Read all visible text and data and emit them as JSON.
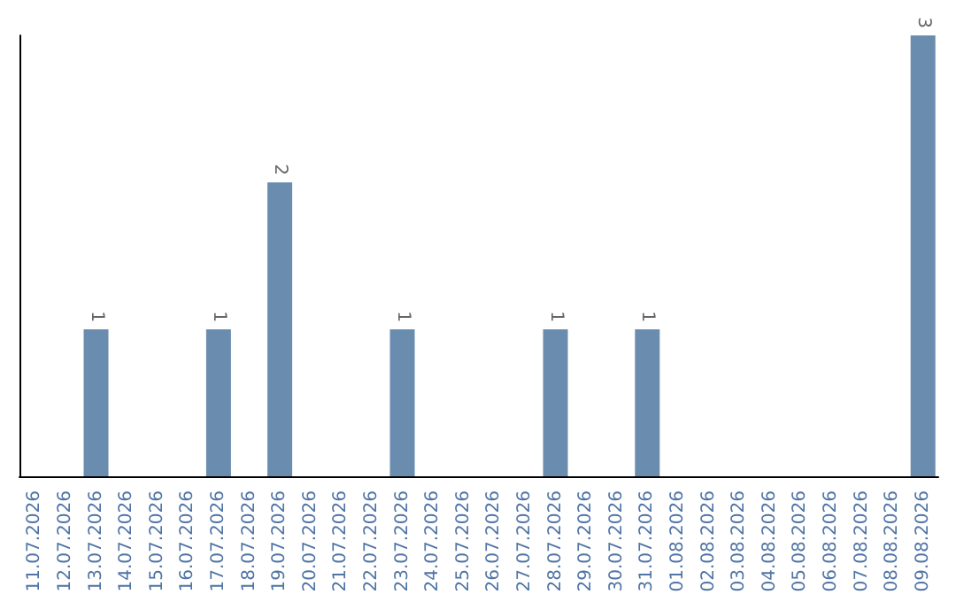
{
  "chart_data": {
    "type": "bar",
    "categories": [
      "11.07.2026",
      "12.07.2026",
      "13.07.2026",
      "14.07.2026",
      "15.07.2026",
      "16.07.2026",
      "17.07.2026",
      "18.07.2026",
      "19.07.2026",
      "20.07.2026",
      "21.07.2026",
      "22.07.2026",
      "23.07.2026",
      "24.07.2026",
      "25.07.2026",
      "26.07.2026",
      "27.07.2026",
      "28.07.2026",
      "29.07.2026",
      "30.07.2026",
      "31.07.2026",
      "01.08.2026",
      "02.08.2026",
      "03.08.2026",
      "04.08.2026",
      "05.08.2026",
      "06.08.2026",
      "07.08.2026",
      "08.08.2026",
      "09.08.2026"
    ],
    "values": [
      0,
      0,
      1,
      0,
      0,
      0,
      1,
      0,
      2,
      0,
      0,
      0,
      1,
      0,
      0,
      0,
      0,
      1,
      0,
      0,
      1,
      0,
      0,
      0,
      0,
      0,
      0,
      0,
      0,
      3
    ],
    "value_labels": [
      null,
      null,
      "1",
      null,
      null,
      null,
      "1",
      null,
      "2",
      null,
      null,
      null,
      "1",
      null,
      null,
      null,
      null,
      "1",
      null,
      null,
      "1",
      null,
      null,
      null,
      null,
      null,
      null,
      null,
      null,
      "3"
    ],
    "color": "#6a8caf",
    "grid": false,
    "tick_labels": "x"
  }
}
